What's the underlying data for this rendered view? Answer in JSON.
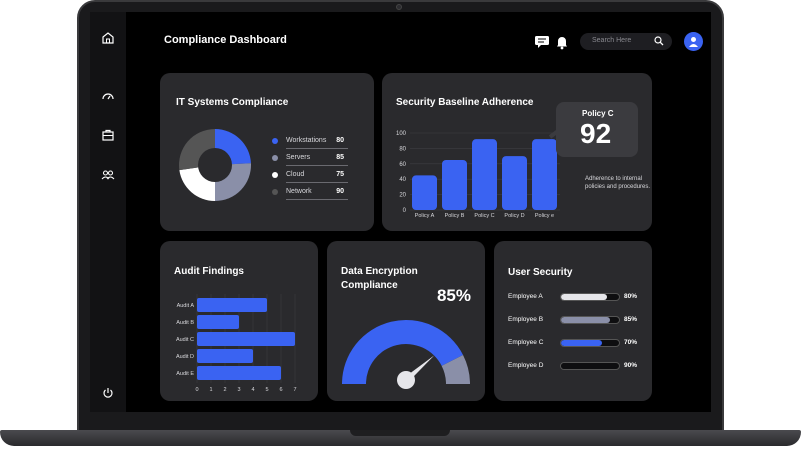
{
  "header": {
    "title": "Compliance Dashboard",
    "search_placeholder": "Search Here",
    "icons": [
      "chat-icon",
      "bell-icon",
      "search-icon",
      "user-icon"
    ]
  },
  "sidebar": {
    "icons": [
      "home-icon",
      "gauge-icon",
      "briefcase-icon",
      "users-icon",
      "power-icon"
    ]
  },
  "it_compliance": {
    "title": "IT Systems Compliance",
    "items": [
      {
        "label": "Workstations",
        "value": "80",
        "color": "#3a63f2"
      },
      {
        "label": "Servers",
        "value": "85",
        "color": "#8a8fa8"
      },
      {
        "label": "Cloud",
        "value": "75",
        "color": "#ffffff"
      },
      {
        "label": "Network",
        "value": "90",
        "color": "#555555"
      }
    ]
  },
  "baseline": {
    "title": "Security Baseline Adherence",
    "popup_label": "Policy C",
    "popup_value": "92",
    "note": "Adherence to internal policies and procedures.",
    "chart_data": {
      "type": "bar",
      "categories": [
        "Policy A",
        "Policy B",
        "Policy C",
        "Policy D",
        "Policy e"
      ],
      "values": [
        45,
        65,
        92,
        70,
        92
      ],
      "yticks": [
        "100",
        "80",
        "60",
        "40",
        "20",
        "0"
      ],
      "ylim": [
        0,
        100
      ],
      "color": "#3a63f2"
    }
  },
  "audit": {
    "title": "Audit Findings",
    "chart_data": {
      "type": "bar",
      "orientation": "horizontal",
      "categories": [
        "Audit A",
        "Audit B",
        "Audit C",
        "Audit D",
        "Audit E"
      ],
      "values": [
        5,
        3,
        7,
        4,
        6
      ],
      "xticks": [
        "0",
        "1",
        "2",
        "3",
        "4",
        "5",
        "6",
        "7"
      ],
      "xlim": [
        0,
        7
      ],
      "color": "#3a63f2"
    }
  },
  "encryption": {
    "title_line1": "Data Encryption",
    "title_line2": "Compliance",
    "percent_label": "85%",
    "value": 85,
    "color": "#3a63f2",
    "rest_color": "#8a8fa8"
  },
  "user_security": {
    "title": "User Security",
    "rows": [
      {
        "name": "Employee A",
        "pct_label": "80%",
        "value": 80,
        "color": "#e6e6ea"
      },
      {
        "name": "Employee B",
        "pct_label": "85%",
        "value": 85,
        "color": "#8a8fa8"
      },
      {
        "name": "Employee C",
        "pct_label": "70%",
        "value": 70,
        "color": "#3a63f2"
      },
      {
        "name": "Employee D",
        "pct_label": "90%",
        "value": 90,
        "color": "#0e0e10"
      }
    ]
  }
}
